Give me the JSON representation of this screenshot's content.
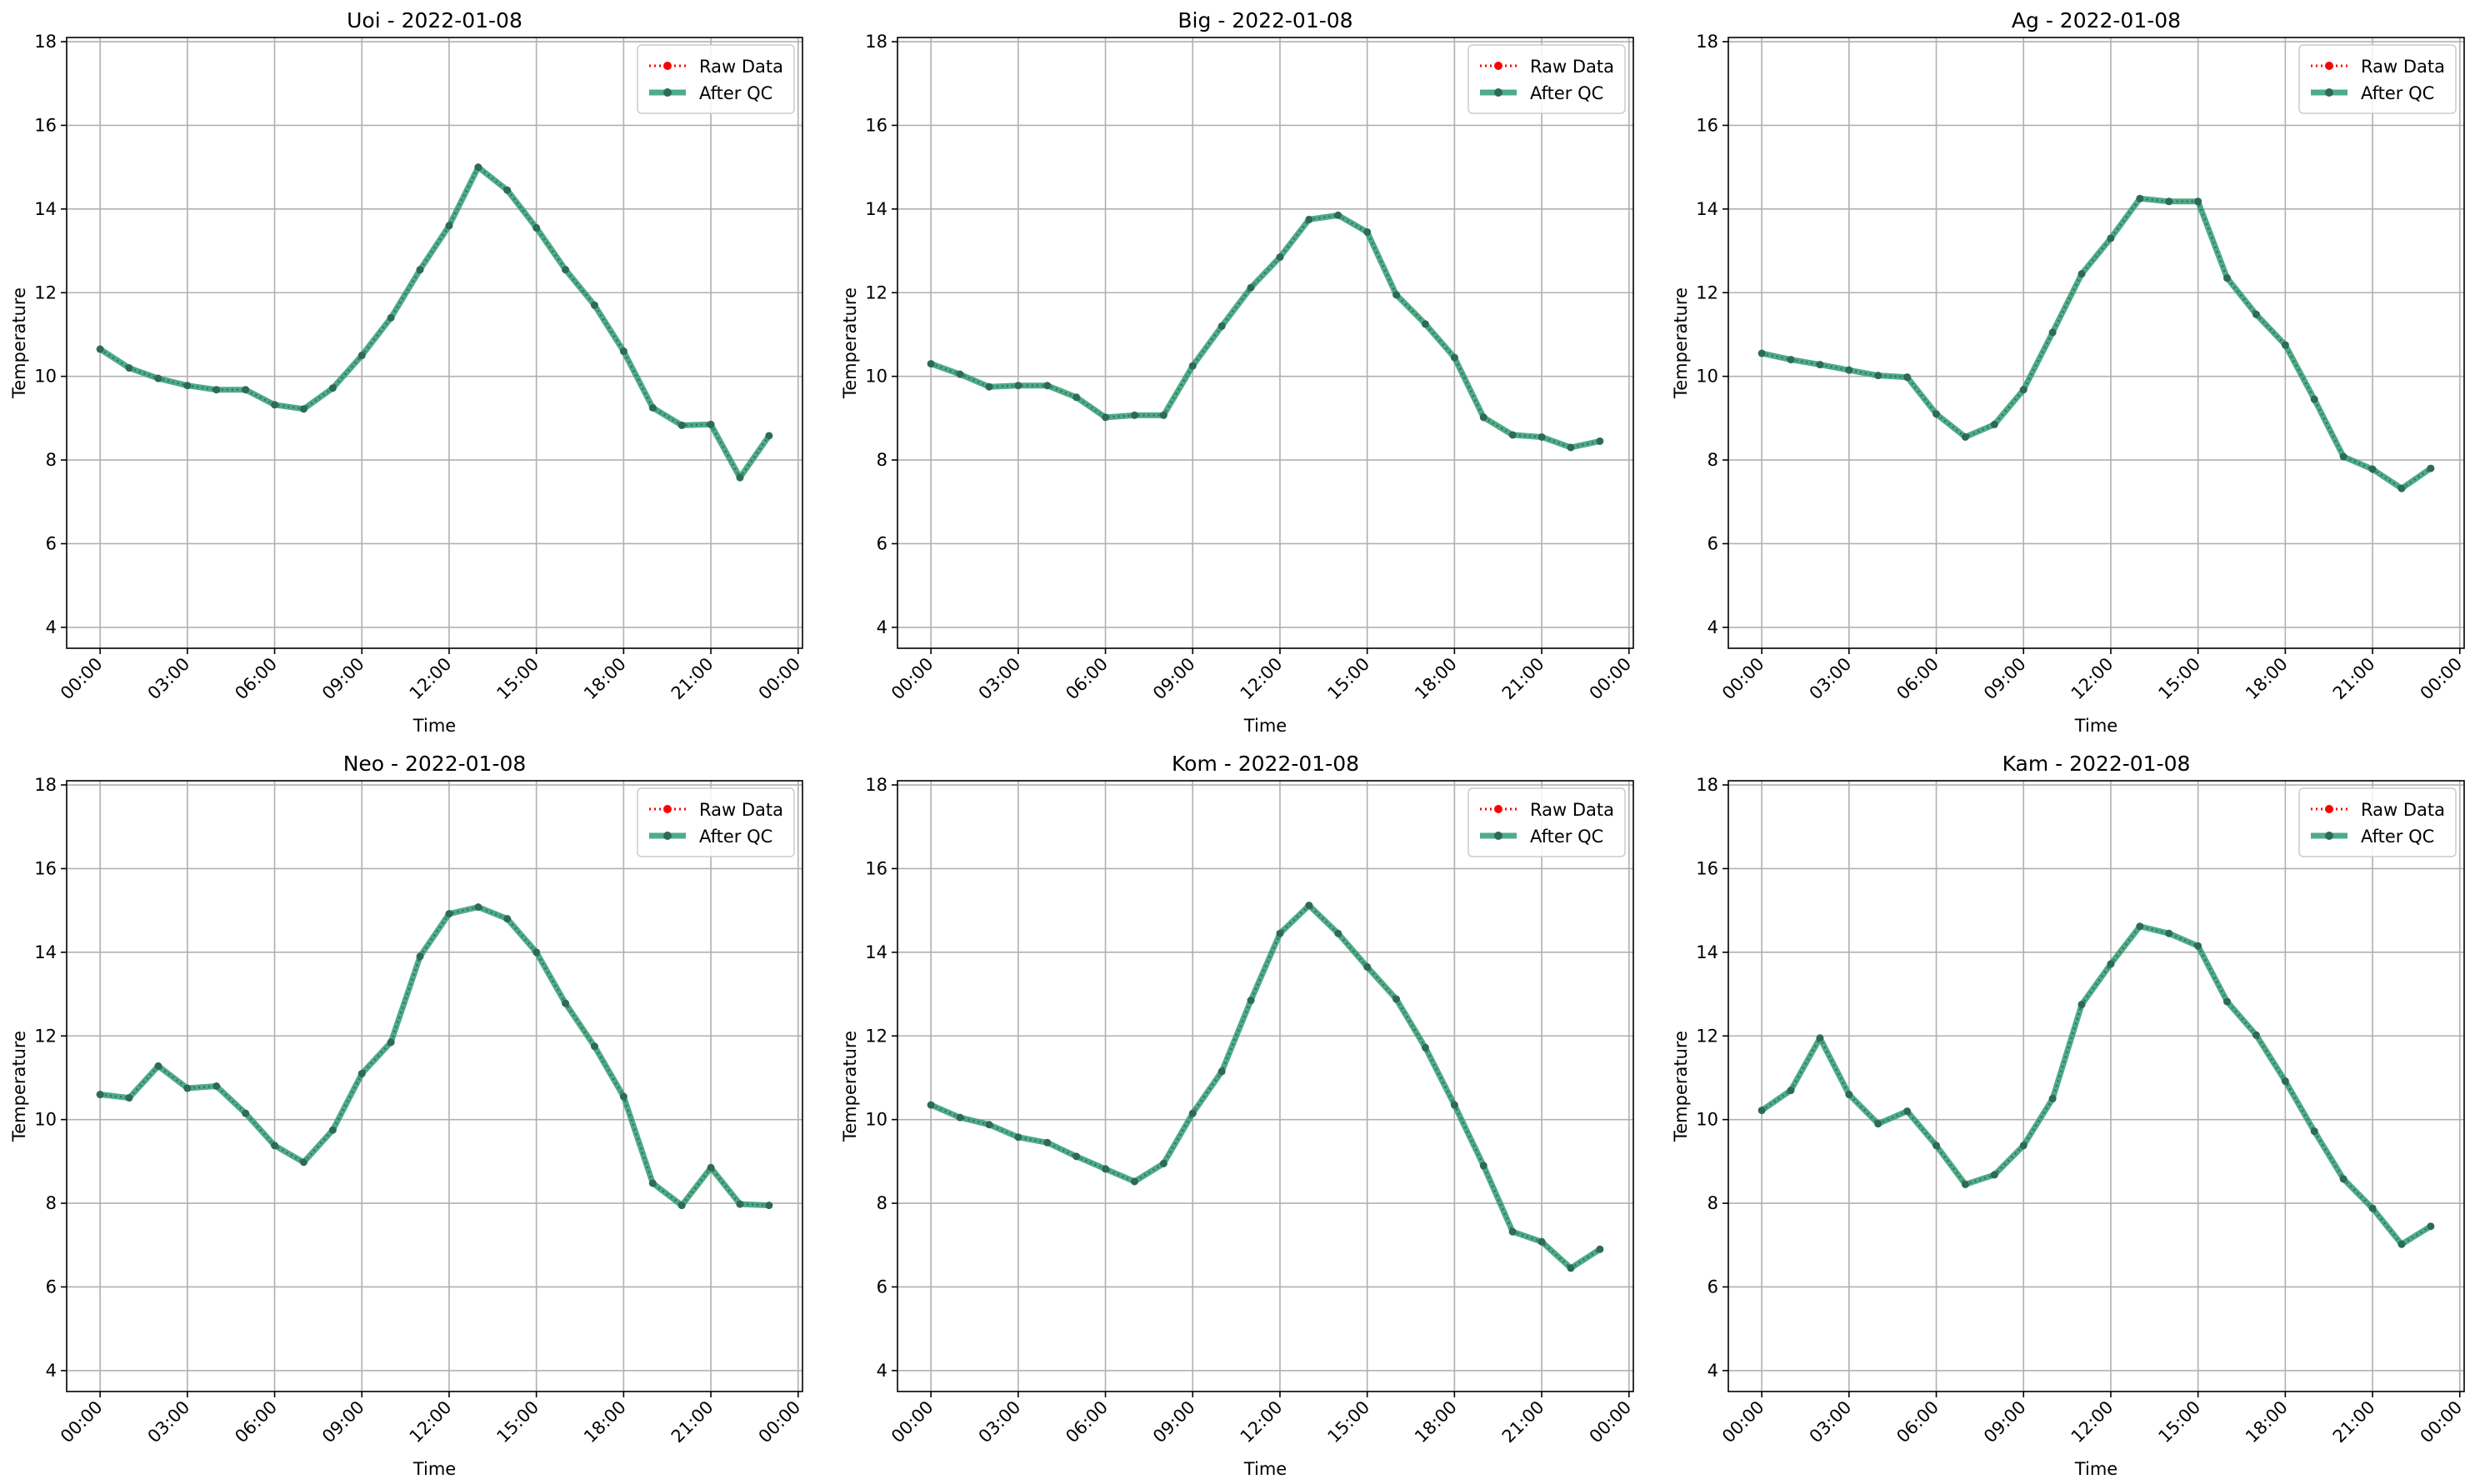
{
  "figure": {
    "legend_labels": [
      "Raw Data",
      "After QC"
    ],
    "colors": {
      "raw": "#ff0000",
      "qc": "#2e9e74",
      "qc_marker": "#2d6b55",
      "grid": "#b0b0b0",
      "axis": "#000000"
    }
  },
  "chart_data": [
    {
      "type": "line",
      "title": "Uoi - 2022-01-08",
      "xlabel": "Time",
      "ylabel": "Temperature",
      "x_ticks": [
        "00:00",
        "03:00",
        "06:00",
        "09:00",
        "12:00",
        "15:00",
        "18:00",
        "21:00",
        "00:00"
      ],
      "y_ticks": [
        "4",
        "6",
        "8",
        "10",
        "12",
        "14",
        "16",
        "18"
      ],
      "xlim_hours": [
        -1.15,
        24.15
      ],
      "ylim": [
        3.5,
        18.1
      ],
      "grid": true,
      "legend_position": "upper right",
      "x_hours": [
        0,
        1,
        2,
        3,
        4,
        5,
        6,
        7,
        8,
        9,
        10,
        11,
        12,
        13,
        14,
        15,
        16,
        17,
        18,
        19,
        20,
        21,
        22,
        23
      ],
      "series": [
        {
          "name": "Raw Data",
          "style": "dotted",
          "values": [
            10.65,
            10.2,
            9.95,
            9.78,
            9.68,
            9.68,
            9.32,
            9.22,
            9.72,
            10.5,
            11.4,
            12.55,
            13.6,
            15.0,
            14.45,
            13.55,
            12.55,
            11.7,
            10.6,
            9.25,
            8.83,
            8.85,
            7.58,
            8.58
          ]
        },
        {
          "name": "After QC",
          "style": "solid",
          "values": [
            10.65,
            10.2,
            9.95,
            9.78,
            9.68,
            9.68,
            9.32,
            9.22,
            9.72,
            10.5,
            11.4,
            12.55,
            13.6,
            15.0,
            14.45,
            13.55,
            12.55,
            11.7,
            10.6,
            9.25,
            8.83,
            8.85,
            7.58,
            8.58
          ]
        }
      ]
    },
    {
      "type": "line",
      "title": "Big - 2022-01-08",
      "xlabel": "Time",
      "ylabel": "Temperature",
      "x_ticks": [
        "00:00",
        "03:00",
        "06:00",
        "09:00",
        "12:00",
        "15:00",
        "18:00",
        "21:00",
        "00:00"
      ],
      "y_ticks": [
        "4",
        "6",
        "8",
        "10",
        "12",
        "14",
        "16",
        "18"
      ],
      "xlim_hours": [
        -1.15,
        24.15
      ],
      "ylim": [
        3.5,
        18.1
      ],
      "grid": true,
      "legend_position": "upper right",
      "x_hours": [
        0,
        1,
        2,
        3,
        4,
        5,
        6,
        7,
        8,
        9,
        10,
        11,
        12,
        13,
        14,
        15,
        16,
        17,
        18,
        19,
        20,
        21,
        22,
        23
      ],
      "series": [
        {
          "name": "Raw Data",
          "style": "dotted",
          "values": [
            10.3,
            10.05,
            9.75,
            9.78,
            9.78,
            9.5,
            9.02,
            9.07,
            9.07,
            10.25,
            11.2,
            12.12,
            12.85,
            13.75,
            13.85,
            13.45,
            11.95,
            11.25,
            10.45,
            9.02,
            8.6,
            8.55,
            8.3,
            8.45
          ]
        },
        {
          "name": "After QC",
          "style": "solid",
          "values": [
            10.3,
            10.05,
            9.75,
            9.78,
            9.78,
            9.5,
            9.02,
            9.07,
            9.07,
            10.25,
            11.2,
            12.12,
            12.85,
            13.75,
            13.85,
            13.45,
            11.95,
            11.25,
            10.45,
            9.02,
            8.6,
            8.55,
            8.3,
            8.45
          ]
        }
      ]
    },
    {
      "type": "line",
      "title": "Ag - 2022-01-08",
      "xlabel": "Time",
      "ylabel": "Temperature",
      "x_ticks": [
        "00:00",
        "03:00",
        "06:00",
        "09:00",
        "12:00",
        "15:00",
        "18:00",
        "21:00",
        "00:00"
      ],
      "y_ticks": [
        "4",
        "6",
        "8",
        "10",
        "12",
        "14",
        "16",
        "18"
      ],
      "xlim_hours": [
        -1.15,
        24.15
      ],
      "ylim": [
        3.5,
        18.1
      ],
      "grid": true,
      "legend_position": "upper right",
      "x_hours": [
        0,
        1,
        2,
        3,
        4,
        5,
        6,
        7,
        8,
        9,
        10,
        11,
        12,
        13,
        14,
        15,
        16,
        17,
        18,
        19,
        20,
        21,
        22,
        23
      ],
      "series": [
        {
          "name": "Raw Data",
          "style": "dotted",
          "values": [
            10.55,
            10.4,
            10.28,
            10.15,
            10.02,
            9.98,
            9.1,
            8.55,
            8.85,
            9.68,
            11.05,
            12.45,
            13.3,
            14.25,
            14.18,
            14.18,
            12.35,
            11.48,
            10.75,
            9.45,
            8.08,
            7.78,
            7.32,
            7.8
          ]
        },
        {
          "name": "After QC",
          "style": "solid",
          "values": [
            10.55,
            10.4,
            10.28,
            10.15,
            10.02,
            9.98,
            9.1,
            8.55,
            8.85,
            9.68,
            11.05,
            12.45,
            13.3,
            14.25,
            14.18,
            14.18,
            12.35,
            11.48,
            10.75,
            9.45,
            8.08,
            7.78,
            7.32,
            7.8
          ]
        }
      ]
    },
    {
      "type": "line",
      "title": "Neo - 2022-01-08",
      "xlabel": "Time",
      "ylabel": "Temperature",
      "x_ticks": [
        "00:00",
        "03:00",
        "06:00",
        "09:00",
        "12:00",
        "15:00",
        "18:00",
        "21:00",
        "00:00"
      ],
      "y_ticks": [
        "4",
        "6",
        "8",
        "10",
        "12",
        "14",
        "16",
        "18"
      ],
      "xlim_hours": [
        -1.15,
        24.15
      ],
      "ylim": [
        3.5,
        18.1
      ],
      "grid": true,
      "legend_position": "upper right",
      "x_hours": [
        0,
        1,
        2,
        3,
        4,
        5,
        6,
        7,
        8,
        9,
        10,
        11,
        12,
        13,
        14,
        15,
        16,
        17,
        18,
        19,
        20,
        21,
        22,
        23
      ],
      "series": [
        {
          "name": "Raw Data",
          "style": "dotted",
          "values": [
            10.6,
            10.52,
            11.28,
            10.75,
            10.8,
            10.15,
            9.38,
            8.98,
            9.75,
            11.1,
            11.85,
            13.9,
            14.92,
            15.08,
            14.8,
            14.0,
            12.78,
            11.75,
            10.55,
            8.48,
            7.95,
            8.85,
            7.98,
            7.95
          ]
        },
        {
          "name": "After QC",
          "style": "solid",
          "values": [
            10.6,
            10.52,
            11.28,
            10.75,
            10.8,
            10.15,
            9.38,
            8.98,
            9.75,
            11.1,
            11.85,
            13.9,
            14.92,
            15.08,
            14.8,
            14.0,
            12.78,
            11.75,
            10.55,
            8.48,
            7.95,
            8.85,
            7.98,
            7.95
          ]
        }
      ]
    },
    {
      "type": "line",
      "title": "Kom - 2022-01-08",
      "xlabel": "Time",
      "ylabel": "Temperature",
      "x_ticks": [
        "00:00",
        "03:00",
        "06:00",
        "09:00",
        "12:00",
        "15:00",
        "18:00",
        "21:00",
        "00:00"
      ],
      "y_ticks": [
        "4",
        "6",
        "8",
        "10",
        "12",
        "14",
        "16",
        "18"
      ],
      "xlim_hours": [
        -1.15,
        24.15
      ],
      "ylim": [
        3.5,
        18.1
      ],
      "grid": true,
      "legend_position": "upper right",
      "x_hours": [
        0,
        1,
        2,
        3,
        4,
        5,
        6,
        7,
        8,
        9,
        10,
        11,
        12,
        13,
        14,
        15,
        16,
        17,
        18,
        19,
        20,
        21,
        22,
        23
      ],
      "series": [
        {
          "name": "Raw Data",
          "style": "dotted",
          "values": [
            10.35,
            10.05,
            9.88,
            9.58,
            9.45,
            9.12,
            8.82,
            8.52,
            8.95,
            10.15,
            11.15,
            12.85,
            14.45,
            15.12,
            14.45,
            13.65,
            12.88,
            11.72,
            10.35,
            8.9,
            7.32,
            7.08,
            6.45,
            6.9
          ]
        },
        {
          "name": "After QC",
          "style": "solid",
          "values": [
            10.35,
            10.05,
            9.88,
            9.58,
            9.45,
            9.12,
            8.82,
            8.52,
            8.95,
            10.15,
            11.15,
            12.85,
            14.45,
            15.12,
            14.45,
            13.65,
            12.88,
            11.72,
            10.35,
            8.9,
            7.32,
            7.08,
            6.45,
            6.9
          ]
        }
      ]
    },
    {
      "type": "line",
      "title": "Kam - 2022-01-08",
      "xlabel": "Time",
      "ylabel": "Temperature",
      "x_ticks": [
        "00:00",
        "03:00",
        "06:00",
        "09:00",
        "12:00",
        "15:00",
        "18:00",
        "21:00",
        "00:00"
      ],
      "y_ticks": [
        "4",
        "6",
        "8",
        "10",
        "12",
        "14",
        "16",
        "18"
      ],
      "xlim_hours": [
        -1.15,
        24.15
      ],
      "ylim": [
        3.5,
        18.1
      ],
      "grid": true,
      "legend_position": "upper right",
      "x_hours": [
        0,
        1,
        2,
        3,
        4,
        5,
        6,
        7,
        8,
        9,
        10,
        11,
        12,
        13,
        14,
        15,
        16,
        17,
        18,
        19,
        20,
        21,
        22,
        23
      ],
      "series": [
        {
          "name": "Raw Data",
          "style": "dotted",
          "values": [
            10.22,
            10.7,
            11.95,
            10.6,
            9.9,
            10.2,
            9.38,
            8.45,
            8.68,
            9.38,
            10.5,
            12.75,
            13.72,
            14.62,
            14.45,
            14.15,
            12.82,
            12.02,
            10.92,
            9.72,
            8.58,
            7.88,
            7.02,
            7.45
          ]
        },
        {
          "name": "After QC",
          "style": "solid",
          "values": [
            10.22,
            10.7,
            11.95,
            10.6,
            9.9,
            10.2,
            9.38,
            8.45,
            8.68,
            9.38,
            10.5,
            12.75,
            13.72,
            14.62,
            14.45,
            14.15,
            12.82,
            12.02,
            10.92,
            9.72,
            8.58,
            7.88,
            7.02,
            7.45
          ]
        }
      ]
    }
  ]
}
